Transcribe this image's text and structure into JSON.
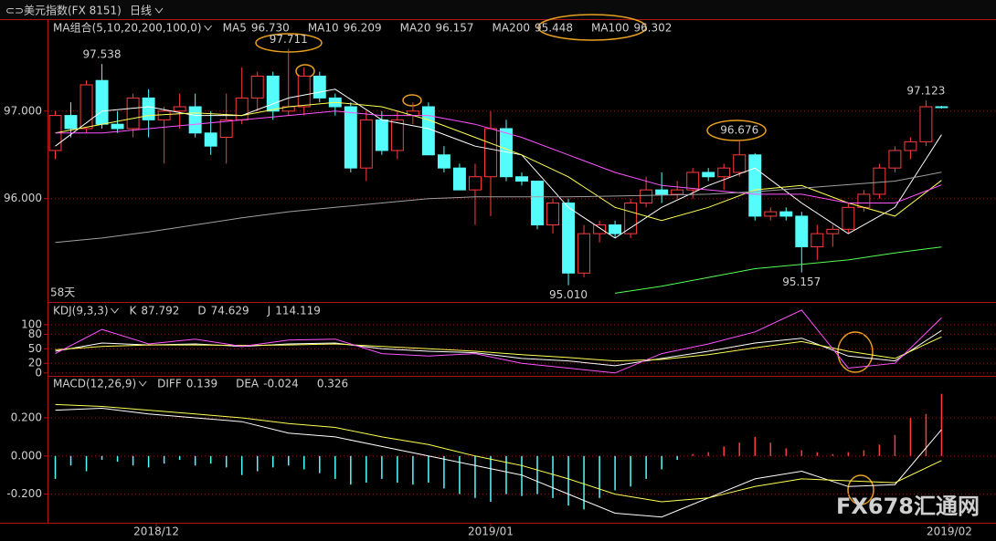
{
  "chart_data": [
    {
      "type": "candlestick",
      "title": "美元指数(FX 8151)",
      "period": "日线",
      "indicator_label": "MA组合(5,10,20,200,100,0)",
      "footnote": "58天",
      "colors": {
        "up": "#ff3c3c",
        "down": "#54fcfc"
      },
      "xlim": [
        -0.5,
        60.5
      ],
      "ylim": [
        94.83,
        98.04
      ],
      "yticks": [
        {
          "value": 96,
          "label": "96.000"
        },
        {
          "value": 97,
          "label": "97.000"
        }
      ],
      "ohlc": [
        [
          96.55,
          97.0,
          96.45,
          96.95
        ],
        [
          96.95,
          97.1,
          96.7,
          96.8
        ],
        [
          96.8,
          97.35,
          96.75,
          97.3
        ],
        [
          97.35,
          97.538,
          96.8,
          96.85
        ],
        [
          96.85,
          97.0,
          96.75,
          96.8
        ],
        [
          96.8,
          97.2,
          96.7,
          97.15
        ],
        [
          97.15,
          97.25,
          96.7,
          96.9
        ],
        [
          96.9,
          97.05,
          96.4,
          97.0
        ],
        [
          97.0,
          97.2,
          96.8,
          97.05
        ],
        [
          97.05,
          97.2,
          96.7,
          96.75
        ],
        [
          96.75,
          97.0,
          96.5,
          96.6
        ],
        [
          96.7,
          97.2,
          96.4,
          96.9
        ],
        [
          96.9,
          97.5,
          96.85,
          97.15
        ],
        [
          97.15,
          97.45,
          97.0,
          97.4
        ],
        [
          97.4,
          97.45,
          96.9,
          97.0
        ],
        [
          97.0,
          97.711,
          96.95,
          97.05
        ],
        [
          97.05,
          97.5,
          96.95,
          97.4
        ],
        [
          97.4,
          97.45,
          97.1,
          97.15
        ],
        [
          97.15,
          97.2,
          96.95,
          97.05
        ],
        [
          97.05,
          97.1,
          96.3,
          96.35
        ],
        [
          96.35,
          97.0,
          96.2,
          96.9
        ],
        [
          96.9,
          97.0,
          96.5,
          96.55
        ],
        [
          96.55,
          97.0,
          96.45,
          96.9
        ],
        [
          96.95,
          97.1,
          96.85,
          97.0
        ],
        [
          97.05,
          97.1,
          96.5,
          96.5
        ],
        [
          96.5,
          96.6,
          96.3,
          96.35
        ],
        [
          96.35,
          96.4,
          96.1,
          96.1
        ],
        [
          96.1,
          96.4,
          95.7,
          96.25
        ],
        [
          96.25,
          97.0,
          95.8,
          96.8
        ],
        [
          96.8,
          96.9,
          96.2,
          96.25
        ],
        [
          96.25,
          96.3,
          96.15,
          96.2
        ],
        [
          96.2,
          96.2,
          95.65,
          95.7
        ],
        [
          95.7,
          96.0,
          95.6,
          95.95
        ],
        [
          95.95,
          96.0,
          95.01,
          95.15
        ],
        [
          95.15,
          95.7,
          95.1,
          95.6
        ],
        [
          95.6,
          95.75,
          95.5,
          95.7
        ],
        [
          95.7,
          95.75,
          95.55,
          95.6
        ],
        [
          95.6,
          96.0,
          95.55,
          95.95
        ],
        [
          95.95,
          96.25,
          95.9,
          96.1
        ],
        [
          96.1,
          96.3,
          95.95,
          96.05
        ],
        [
          96.05,
          96.2,
          96.0,
          96.1
        ],
        [
          96.1,
          96.35,
          96.0,
          96.3
        ],
        [
          96.3,
          96.35,
          96.2,
          96.25
        ],
        [
          96.25,
          96.4,
          96.1,
          96.35
        ],
        [
          96.3,
          96.676,
          96.25,
          96.5
        ],
        [
          96.5,
          96.52,
          95.75,
          95.8
        ],
        [
          95.8,
          95.9,
          95.75,
          95.85
        ],
        [
          95.85,
          95.9,
          95.75,
          95.8
        ],
        [
          95.8,
          95.85,
          95.157,
          95.45
        ],
        [
          95.45,
          95.7,
          95.3,
          95.6
        ],
        [
          95.6,
          95.7,
          95.45,
          95.65
        ],
        [
          95.65,
          95.95,
          95.6,
          95.9
        ],
        [
          95.9,
          96.1,
          95.85,
          96.05
        ],
        [
          96.05,
          96.4,
          96.0,
          96.35
        ],
        [
          96.35,
          96.6,
          96.3,
          96.55
        ],
        [
          96.55,
          96.7,
          96.45,
          96.65
        ],
        [
          96.65,
          97.123,
          96.6,
          97.05
        ],
        [
          97.05,
          97.06,
          97.03,
          97.04
        ]
      ],
      "line_x": [
        0,
        3,
        6,
        9,
        12,
        15,
        18,
        21,
        24,
        27,
        30,
        33,
        36,
        39,
        42,
        45,
        48,
        51,
        54,
        57
      ],
      "series": [
        {
          "name": "MA5",
          "color": "#ffffff",
          "values": [
            96.6,
            97.0,
            97.05,
            96.95,
            96.95,
            97.15,
            97.25,
            96.9,
            96.8,
            96.6,
            96.5,
            95.9,
            95.55,
            95.9,
            96.15,
            96.35,
            95.95,
            95.6,
            95.9,
            96.73
          ],
          "value_labels": [
            null,
            null,
            null,
            null,
            null,
            null,
            null,
            null,
            null,
            null,
            null,
            null,
            null,
            null,
            null,
            null,
            null,
            null,
            null,
            "96.730"
          ]
        },
        {
          "name": "MA10",
          "color": "#ffff54",
          "values": [
            96.75,
            96.85,
            96.95,
            96.98,
            96.95,
            97.05,
            97.1,
            97.05,
            96.9,
            96.7,
            96.5,
            96.25,
            95.9,
            95.75,
            95.9,
            96.1,
            96.15,
            95.95,
            95.8,
            96.209
          ]
        },
        {
          "name": "MA20",
          "color": "#ff54ff",
          "values": [
            96.75,
            96.75,
            96.8,
            96.85,
            96.9,
            96.95,
            97.0,
            96.95,
            96.95,
            96.85,
            96.7,
            96.5,
            96.3,
            96.15,
            96.1,
            96.05,
            96.05,
            95.95,
            95.95,
            96.157
          ]
        },
        {
          "name": "MA200",
          "color": "#54ff54",
          "values": [
            null,
            null,
            null,
            null,
            null,
            null,
            null,
            null,
            null,
            null,
            null,
            null,
            94.92,
            95.0,
            95.1,
            95.2,
            95.25,
            95.3,
            95.38,
            95.448
          ]
        },
        {
          "name": "MA100",
          "color": "#a0a0a0",
          "values": [
            95.5,
            95.55,
            95.62,
            95.7,
            95.78,
            95.85,
            95.9,
            95.95,
            96.0,
            96.02,
            96.02,
            96.02,
            96.03,
            96.04,
            96.05,
            96.08,
            96.12,
            96.16,
            96.2,
            96.302
          ]
        }
      ],
      "annotations": [
        {
          "index": 3,
          "value": 97.538,
          "side": "high"
        },
        {
          "index": 15,
          "value": 97.711,
          "side": "high"
        },
        {
          "index": 44,
          "value": 96.676,
          "side": "high"
        },
        {
          "index": 56,
          "value": 97.123,
          "side": "high"
        },
        {
          "index": 33,
          "value": 95.01,
          "label": "95.010",
          "side": "low"
        },
        {
          "index": 48,
          "value": 95.157,
          "side": "low"
        }
      ]
    },
    {
      "type": "line",
      "indicator_label": "KDJ(9,3,3)",
      "xlim": [
        -0.5,
        60.5
      ],
      "ylim": [
        -6,
        145
      ],
      "yticks": [
        0,
        20,
        50,
        80,
        100
      ],
      "line_x": [
        0,
        3,
        6,
        9,
        12,
        15,
        18,
        21,
        24,
        27,
        30,
        33,
        36,
        39,
        42,
        45,
        48,
        51,
        54,
        57
      ],
      "series": [
        {
          "name": "K",
          "color": "#ffffff",
          "values": [
            45,
            62,
            58,
            60,
            55,
            60,
            62,
            50,
            45,
            42,
            30,
            25,
            15,
            30,
            45,
            62,
            72,
            35,
            25,
            87.792
          ]
        },
        {
          "name": "D",
          "color": "#ffff54",
          "values": [
            48,
            55,
            58,
            58,
            57,
            58,
            60,
            55,
            50,
            45,
            38,
            32,
            25,
            28,
            38,
            52,
            65,
            45,
            30,
            74.629
          ]
        },
        {
          "name": "J",
          "color": "#ff54ff",
          "values": [
            40,
            90,
            60,
            70,
            55,
            68,
            70,
            40,
            35,
            40,
            20,
            10,
            0,
            40,
            60,
            85,
            130,
            10,
            20,
            114.119
          ]
        }
      ]
    },
    {
      "type": "macd",
      "indicator_label": "MACD(12,26,9)",
      "xlim": [
        -0.5,
        60.5
      ],
      "ylim": [
        -0.35,
        0.42
      ],
      "yticks": [
        {
          "value": -0.2,
          "label": "-0.200"
        },
        {
          "value": 0,
          "label": "0.000"
        },
        {
          "value": 0.2,
          "label": "0.200"
        }
      ],
      "xticks": [
        {
          "value": 6.5,
          "label": "2018/12"
        },
        {
          "value": 28,
          "label": "2019/01"
        },
        {
          "value": 57.5,
          "label": "2019/02"
        }
      ],
      "histogram_colors": {
        "up": "#ff3c3c",
        "down": "#54fcfc"
      },
      "histogram": [
        -0.12,
        -0.05,
        -0.08,
        -0.02,
        -0.03,
        -0.05,
        -0.06,
        -0.04,
        -0.02,
        -0.05,
        -0.04,
        -0.06,
        -0.1,
        -0.08,
        -0.06,
        -0.05,
        -0.07,
        -0.09,
        -0.12,
        -0.15,
        -0.14,
        -0.12,
        -0.14,
        -0.15,
        -0.14,
        -0.17,
        -0.2,
        -0.22,
        -0.24,
        -0.2,
        -0.21,
        -0.2,
        -0.22,
        -0.26,
        -0.28,
        -0.22,
        -0.18,
        -0.16,
        -0.12,
        -0.07,
        -0.02,
        0.01,
        0.02,
        0.05,
        0.07,
        0.1,
        0.07,
        0.04,
        0.03,
        0.02,
        0.01,
        0.02,
        0.03,
        0.06,
        0.11,
        0.2,
        0.22,
        0.326
      ],
      "line_x": [
        0,
        3,
        6,
        9,
        12,
        15,
        18,
        21,
        24,
        27,
        30,
        33,
        36,
        39,
        42,
        45,
        48,
        51,
        54,
        57
      ],
      "series": [
        {
          "name": "DIFF",
          "color": "#ffffff",
          "values": [
            0.24,
            0.25,
            0.22,
            0.2,
            0.18,
            0.12,
            0.1,
            0.05,
            0.0,
            -0.05,
            -0.1,
            -0.2,
            -0.3,
            -0.32,
            -0.22,
            -0.12,
            -0.08,
            -0.16,
            -0.15,
            0.139
          ]
        },
        {
          "name": "DEA",
          "color": "#ffff54",
          "values": [
            0.27,
            0.26,
            0.24,
            0.22,
            0.2,
            0.17,
            0.15,
            0.1,
            0.06,
            0.0,
            -0.05,
            -0.12,
            -0.2,
            -0.24,
            -0.22,
            -0.16,
            -0.12,
            -0.13,
            -0.14,
            -0.024
          ]
        }
      ],
      "watermark": "FX678汇通网"
    }
  ]
}
